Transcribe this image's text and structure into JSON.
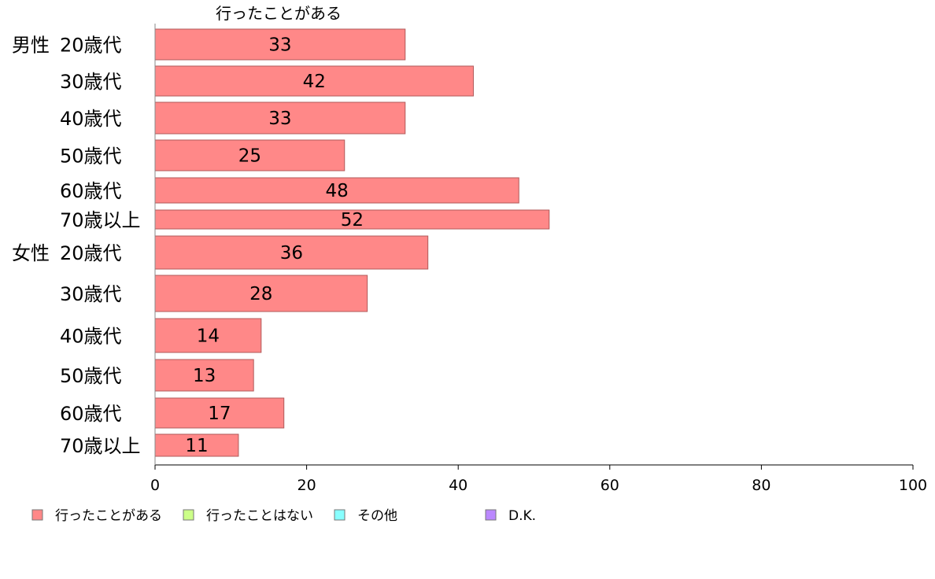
{
  "chart_data": {
    "type": "bar",
    "orientation": "horizontal",
    "column_header": "行ったことがある",
    "groups": [
      {
        "label": "男性",
        "rows": [
          0,
          1,
          2,
          3,
          4,
          5
        ]
      },
      {
        "label": "女性",
        "rows": [
          6,
          7,
          8,
          9,
          10,
          11
        ]
      }
    ],
    "categories": [
      "20歳代",
      "30歳代",
      "40歳代",
      "50歳代",
      "60歳代",
      "70歳以上",
      "20歳代",
      "30歳代",
      "40歳代",
      "50歳代",
      "60歳代",
      "70歳以上"
    ],
    "series": [
      {
        "name": "行ったことがある",
        "color": "#ff8888",
        "values": [
          33,
          42,
          33,
          25,
          48,
          52,
          36,
          28,
          14,
          13,
          17,
          11
        ]
      }
    ],
    "value_labels": [
      "33",
      "42",
      "33",
      "25",
      "48",
      "52",
      "36",
      "28",
      "14",
      "13",
      "17",
      "11"
    ],
    "xlim": [
      0,
      100
    ],
    "xticks": [
      "0",
      "20",
      "40",
      "60",
      "80",
      "100"
    ],
    "grid": false,
    "legend_position": "bottom-left",
    "legend": [
      {
        "label": "行ったことがある",
        "color": "#ff8888"
      },
      {
        "label": "行ったことはない",
        "color": "#ccff88"
      },
      {
        "label": "その他",
        "color": "#88ffff"
      },
      {
        "label": "D.K.",
        "color": "#bb88ff"
      }
    ]
  }
}
